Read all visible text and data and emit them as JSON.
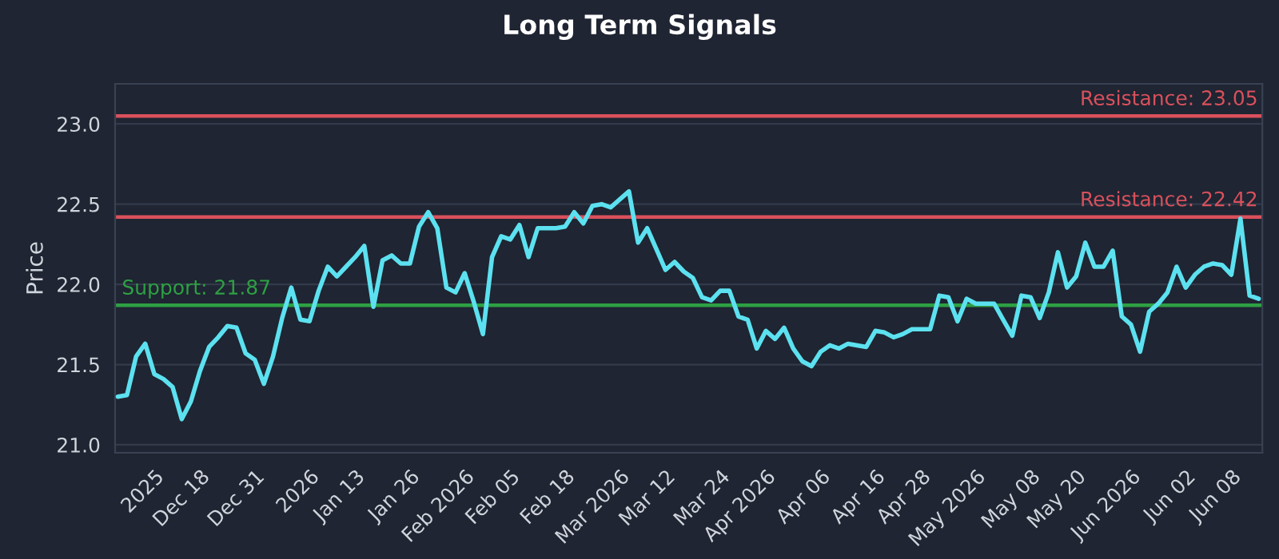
{
  "chart_data": {
    "type": "line",
    "title": "Long Term Signals",
    "ylabel": "Price",
    "categories": [
      null,
      null,
      null,
      null,
      "2025",
      null,
      null,
      null,
      null,
      "Dec 18",
      null,
      null,
      null,
      null,
      null,
      "Dec 31",
      null,
      null,
      null,
      null,
      null,
      "2026",
      null,
      null,
      null,
      null,
      "Jan 13",
      null,
      null,
      null,
      null,
      null,
      "Jan 26",
      null,
      null,
      null,
      null,
      null,
      "Feb 2026",
      null,
      null,
      null,
      null,
      "Feb 05",
      null,
      null,
      null,
      null,
      null,
      "Feb 18",
      null,
      null,
      null,
      null,
      null,
      "Mar 2026",
      null,
      null,
      null,
      null,
      "Mar 12",
      null,
      null,
      null,
      null,
      null,
      "Mar 24",
      null,
      null,
      null,
      null,
      "Apr 2026",
      null,
      null,
      null,
      null,
      null,
      "Apr 06",
      null,
      null,
      null,
      null,
      null,
      "Apr 16",
      null,
      null,
      null,
      null,
      "Apr 28",
      null,
      null,
      null,
      null,
      null,
      "May 2026",
      null,
      null,
      null,
      null,
      null,
      "May 08",
      null,
      null,
      null,
      null,
      "May 20",
      null,
      null,
      null,
      null,
      null,
      "Jun 2026",
      null,
      null,
      null,
      null,
      null,
      "Jun 02",
      null,
      null,
      null,
      null,
      "Jun 08",
      null,
      null,
      null
    ],
    "series": [
      {
        "color": "#5ce1f0",
        "values": [
          21.3,
          21.31,
          21.55,
          21.63,
          21.44,
          21.41,
          21.36,
          21.16,
          21.27,
          21.46,
          21.61,
          21.67,
          21.74,
          21.73,
          21.57,
          21.53,
          21.38,
          21.55,
          21.79,
          21.98,
          21.78,
          21.77,
          21.96,
          22.11,
          22.05,
          22.11,
          22.17,
          22.24,
          21.86,
          22.15,
          22.18,
          22.13,
          22.13,
          22.36,
          22.45,
          22.35,
          21.98,
          21.95,
          22.07,
          21.89,
          21.69,
          22.17,
          22.3,
          22.28,
          22.37,
          22.17,
          22.35,
          22.35,
          22.35,
          22.36,
          22.45,
          22.38,
          22.49,
          22.5,
          22.48,
          22.53,
          22.58,
          22.26,
          22.35,
          22.22,
          22.09,
          22.14,
          22.08,
          22.04,
          21.92,
          21.9,
          21.96,
          21.96,
          21.8,
          21.78,
          21.6,
          21.71,
          21.66,
          21.73,
          21.6,
          21.52,
          21.49,
          21.58,
          21.62,
          21.6,
          21.63,
          21.62,
          21.61,
          21.71,
          21.7,
          21.67,
          21.69,
          21.72,
          21.72,
          21.72,
          21.93,
          21.92,
          21.77,
          21.91,
          21.88,
          21.88,
          21.88,
          21.78,
          21.68,
          21.93,
          21.92,
          21.79,
          21.95,
          22.2,
          21.98,
          22.05,
          22.26,
          22.11,
          22.11,
          22.21,
          21.8,
          21.75,
          21.58,
          21.83,
          21.88,
          21.95,
          22.11,
          21.98,
          22.06,
          22.11,
          22.13,
          22.12,
          22.06,
          22.41,
          21.93,
          21.91
        ]
      }
    ],
    "ylim": [
      20.95,
      23.25
    ],
    "yticks": [
      {
        "value": 21.0,
        "label": "21.0"
      },
      {
        "value": 21.5,
        "label": "21.5"
      },
      {
        "value": 22.0,
        "label": "22.0"
      },
      {
        "value": 22.5,
        "label": "22.5"
      },
      {
        "value": 23.0,
        "label": "23.0"
      }
    ],
    "grid": "y",
    "marker": "none",
    "line_style": "solid",
    "legend": false,
    "ref_lines": [
      {
        "axis": "y",
        "value": 23.05,
        "label": "Resistance: 23.05",
        "color": "#d9505c"
      },
      {
        "axis": "y",
        "value": 22.42,
        "label": "Resistance: 22.42",
        "color": "#d9505c"
      },
      {
        "axis": "y",
        "value": 21.87,
        "label": "Support: 21.87",
        "color": "#2ea043"
      }
    ]
  }
}
